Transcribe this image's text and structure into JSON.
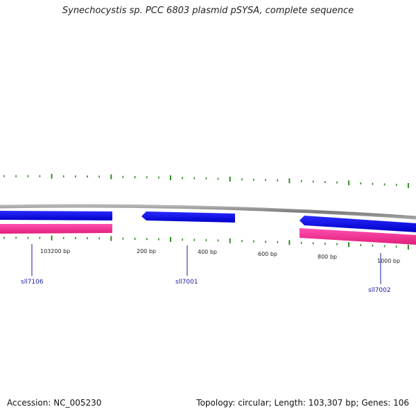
{
  "title": "Synechocystis sp. PCC 6803 plasmid pSYSA, complete sequence",
  "footer": {
    "accession": "Accession: NC_005230",
    "summary": "Topology: circular; Length: 103,307 bp; Genes: 106"
  },
  "map": {
    "topology": "circular",
    "length_bp": 103307,
    "gene_count": 106,
    "scale_labels": [
      "103200 bp",
      "200 bp",
      "400 bp",
      "600 bp",
      "800 bp",
      "1000 bp"
    ],
    "gene_labels": [
      "sll7106",
      "sll7001",
      "sll7002"
    ],
    "colors": {
      "backbone": "#8c8c8c",
      "forward_gene": "#0000e0",
      "gene_highlight": "#ff3399",
      "ticks": "#2e8b20",
      "label": "#1a1aa6",
      "scale_text": "#222222"
    }
  }
}
